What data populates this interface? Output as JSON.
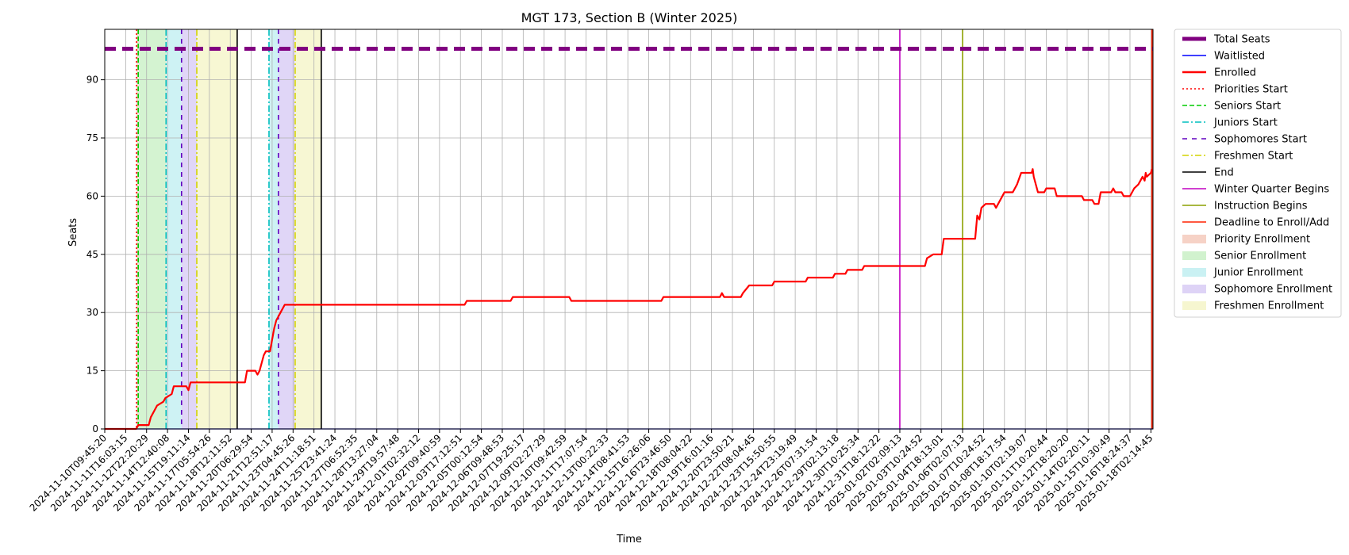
{
  "chart_data": {
    "type": "line",
    "title": "MGT 173, Section B (Winter 2025)",
    "xlabel": "Time",
    "ylabel": "Seats",
    "ylim": [
      0,
      103
    ],
    "yticks": [
      0,
      15,
      30,
      45,
      60,
      75,
      90
    ],
    "grid": true,
    "legend_position": "outside-right",
    "x_tick_labels": [
      "2024-11-10T09:45:20",
      "2024-11-11T16:03:15",
      "2024-11-12T22:20:29",
      "2024-11-14T12:40:08",
      "2024-11-15T19:11:14",
      "2024-11-17T05:54:26",
      "2024-11-18T12:11:52",
      "2024-11-20T06:29:54",
      "2024-11-21T12:51:17",
      "2024-11-23T04:45:26",
      "2024-11-24T11:18:51",
      "2024-11-25T23:41:24",
      "2024-11-27T06:52:35",
      "2024-11-28T13:27:04",
      "2024-11-29T19:57:48",
      "2024-12-01T02:32:12",
      "2024-12-02T09:40:59",
      "2024-12-03T17:12:51",
      "2024-12-05T00:12:54",
      "2024-12-06T09:48:53",
      "2024-12-07T19:25:17",
      "2024-12-09T02:27:29",
      "2024-12-10T09:42:59",
      "2024-12-11T17:07:54",
      "2024-12-13T00:22:33",
      "2024-12-14T08:41:53",
      "2024-12-15T16:26:06",
      "2024-12-16T23:46:50",
      "2024-12-18T08:04:22",
      "2024-12-19T16:01:16",
      "2024-12-20T23:50:21",
      "2024-12-22T08:04:45",
      "2024-12-23T15:50:55",
      "2024-12-24T23:19:49",
      "2024-12-26T07:31:54",
      "2024-12-29T02:13:18",
      "2024-12-30T10:25:34",
      "2024-12-31T18:12:22",
      "2025-01-02T02:09:13",
      "2025-01-03T10:24:52",
      "2025-01-04T18:13:01",
      "2025-01-06T02:07:13",
      "2025-01-07T10:24:52",
      "2025-01-08T18:17:54",
      "2025-01-10T02:19:07",
      "2025-01-11T10:20:44",
      "2025-01-12T18:20:20",
      "2025-01-14T02:20:11",
      "2025-01-15T10:30:49",
      "2025-01-16T18:24:37",
      "2025-01-18T02:14:45"
    ],
    "x_range": [
      0,
      50.1
    ],
    "series": [
      {
        "name": "Total Seats",
        "color": "#800080",
        "style": "dashed-thick",
        "points": [
          [
            0,
            98
          ],
          [
            50.1,
            98
          ]
        ]
      },
      {
        "name": "Waitlisted",
        "color": "#0000ff",
        "style": "solid-thin",
        "points": [
          [
            0,
            0
          ],
          [
            50.1,
            0
          ]
        ]
      },
      {
        "name": "Enrolled",
        "color": "#ff0000",
        "style": "solid",
        "points": [
          [
            0,
            0
          ],
          [
            1.5,
            0
          ],
          [
            1.6,
            1
          ],
          [
            2.1,
            1
          ],
          [
            2.2,
            3
          ],
          [
            2.4,
            5
          ],
          [
            2.5,
            6
          ],
          [
            2.8,
            7
          ],
          [
            2.9,
            8
          ],
          [
            3.2,
            9
          ],
          [
            3.3,
            11
          ],
          [
            3.9,
            11
          ],
          [
            4.0,
            10
          ],
          [
            4.1,
            12
          ],
          [
            6.7,
            12
          ],
          [
            6.8,
            15
          ],
          [
            7.2,
            15
          ],
          [
            7.3,
            14
          ],
          [
            7.4,
            15
          ],
          [
            7.6,
            19
          ],
          [
            7.7,
            20
          ],
          [
            7.9,
            20
          ],
          [
            8.0,
            23
          ],
          [
            8.1,
            26
          ],
          [
            8.2,
            28
          ],
          [
            8.4,
            30
          ],
          [
            8.6,
            32
          ],
          [
            17.2,
            32
          ],
          [
            17.3,
            33
          ],
          [
            19.4,
            33
          ],
          [
            19.5,
            34
          ],
          [
            22.2,
            34
          ],
          [
            22.3,
            33
          ],
          [
            26.6,
            33
          ],
          [
            26.7,
            34
          ],
          [
            29.4,
            34
          ],
          [
            29.5,
            35
          ],
          [
            29.6,
            34
          ],
          [
            30.4,
            34
          ],
          [
            30.5,
            35
          ],
          [
            30.8,
            37
          ],
          [
            31.9,
            37
          ],
          [
            32.0,
            38
          ],
          [
            33.5,
            38
          ],
          [
            33.6,
            39
          ],
          [
            34.8,
            39
          ],
          [
            34.9,
            40
          ],
          [
            35.4,
            40
          ],
          [
            35.5,
            41
          ],
          [
            36.2,
            41
          ],
          [
            36.3,
            42
          ],
          [
            39.2,
            42
          ],
          [
            39.3,
            44
          ],
          [
            39.6,
            45
          ],
          [
            40.0,
            45
          ],
          [
            40.1,
            49
          ],
          [
            41.6,
            49
          ],
          [
            41.7,
            55
          ],
          [
            41.8,
            54
          ],
          [
            41.9,
            57
          ],
          [
            42.1,
            58
          ],
          [
            42.5,
            58
          ],
          [
            42.6,
            57
          ],
          [
            42.8,
            59
          ],
          [
            43.0,
            61
          ],
          [
            43.4,
            61
          ],
          [
            43.6,
            63
          ],
          [
            43.8,
            66
          ],
          [
            44.3,
            66
          ],
          [
            44.35,
            67
          ],
          [
            44.4,
            65
          ],
          [
            44.6,
            61
          ],
          [
            44.9,
            61
          ],
          [
            45.0,
            62
          ],
          [
            45.4,
            62
          ],
          [
            45.5,
            60
          ],
          [
            46.7,
            60
          ],
          [
            46.8,
            59
          ],
          [
            47.2,
            59
          ],
          [
            47.3,
            58
          ],
          [
            47.5,
            58
          ],
          [
            47.6,
            61
          ],
          [
            48.1,
            61
          ],
          [
            48.2,
            62
          ],
          [
            48.3,
            61
          ],
          [
            48.6,
            61
          ],
          [
            48.7,
            60
          ],
          [
            49.0,
            60
          ],
          [
            49.2,
            62
          ],
          [
            49.4,
            63
          ],
          [
            49.5,
            64
          ],
          [
            49.6,
            65
          ],
          [
            49.7,
            64
          ],
          [
            49.75,
            66
          ],
          [
            49.8,
            65
          ],
          [
            50.0,
            66
          ],
          [
            50.05,
            67
          ]
        ]
      }
    ],
    "vlines": [
      {
        "name": "Priorities Start",
        "x": 1.52,
        "color": "#ff0000",
        "style": "dotted"
      },
      {
        "name": "Seniors Start",
        "x": 1.6,
        "color": "#00cc00",
        "style": "dashed"
      },
      {
        "name": "Juniors Start",
        "x": 2.93,
        "color": "#00bfbf",
        "style": "dashdot"
      },
      {
        "name": "Sophomores Start",
        "x": 3.67,
        "color": "#6000c0",
        "style": "loosedash"
      },
      {
        "name": "Freshmen Start",
        "x": 4.4,
        "color": "#d4d400",
        "style": "dashdot"
      },
      {
        "name": "End",
        "x": 6.33,
        "color": "#000000",
        "style": "solid"
      },
      {
        "name": "Juniors Start",
        "x": 7.85,
        "color": "#00bfbf",
        "style": "dashdot"
      },
      {
        "name": "Sophomores Start",
        "x": 8.3,
        "color": "#6000c0",
        "style": "loosedash"
      },
      {
        "name": "Freshmen Start",
        "x": 9.1,
        "color": "#d4d400",
        "style": "dashdot"
      },
      {
        "name": "End",
        "x": 10.35,
        "color": "#000000",
        "style": "solid"
      },
      {
        "name": "Winter Quarter Begins",
        "x": 38.0,
        "color": "#c000c0",
        "style": "solid"
      },
      {
        "name": "Instruction Begins",
        "x": 41.0,
        "color": "#8ca000",
        "style": "solid"
      },
      {
        "name": "Deadline to Enroll/Add",
        "x": 50.05,
        "color": "#ff2000",
        "style": "solid"
      }
    ],
    "spans": [
      {
        "name": "Priority Enrollment",
        "x0": 1.52,
        "x1": 1.6,
        "color": "#f4c7b8"
      },
      {
        "name": "Senior Enrollment",
        "x0": 1.6,
        "x1": 2.93,
        "color": "#c6efc2"
      },
      {
        "name": "Junior Enrollment",
        "x0": 2.93,
        "x1": 3.67,
        "color": "#bdeef0"
      },
      {
        "name": "Sophomore Enrollment",
        "x0": 3.67,
        "x1": 4.4,
        "color": "#d6c8f4"
      },
      {
        "name": "Freshmen Enrollment",
        "x0": 4.4,
        "x1": 6.33,
        "color": "#f4f4c4"
      },
      {
        "name": "Junior Enrollment",
        "x0": 7.85,
        "x1": 8.3,
        "color": "#bdeef0"
      },
      {
        "name": "Sophomore Enrollment",
        "x0": 8.3,
        "x1": 9.1,
        "color": "#d6c8f4"
      },
      {
        "name": "Freshmen Enrollment",
        "x0": 9.1,
        "x1": 10.35,
        "color": "#f4f4c4"
      }
    ],
    "legend": [
      {
        "label": "Total Seats",
        "kind": "line",
        "color": "#800080",
        "style": "thick"
      },
      {
        "label": "Waitlisted",
        "kind": "line",
        "color": "#0000ff",
        "style": "solid"
      },
      {
        "label": "Enrolled",
        "kind": "line",
        "color": "#ff0000",
        "style": "bold"
      },
      {
        "label": "Priorities Start",
        "kind": "line",
        "color": "#ff0000",
        "style": "dotted"
      },
      {
        "label": "Seniors Start",
        "kind": "line",
        "color": "#00cc00",
        "style": "dashed"
      },
      {
        "label": "Juniors Start",
        "kind": "line",
        "color": "#00bfbf",
        "style": "dashdot"
      },
      {
        "label": "Sophomores Start",
        "kind": "line",
        "color": "#6000c0",
        "style": "loosedash"
      },
      {
        "label": "Freshmen Start",
        "kind": "line",
        "color": "#d4d400",
        "style": "dashdot"
      },
      {
        "label": "End",
        "kind": "line",
        "color": "#000000",
        "style": "solid"
      },
      {
        "label": "Winter Quarter Begins",
        "kind": "line",
        "color": "#c000c0",
        "style": "solid"
      },
      {
        "label": "Instruction Begins",
        "kind": "line",
        "color": "#8ca000",
        "style": "solid"
      },
      {
        "label": "Deadline to Enroll/Add",
        "kind": "line",
        "color": "#ff2000",
        "style": "solid"
      },
      {
        "label": "Priority Enrollment",
        "kind": "patch",
        "color": "#f4c7b8"
      },
      {
        "label": "Senior Enrollment",
        "kind": "patch",
        "color": "#c6efc2"
      },
      {
        "label": "Junior Enrollment",
        "kind": "patch",
        "color": "#bdeef0"
      },
      {
        "label": "Sophomore Enrollment",
        "kind": "patch",
        "color": "#d6c8f4"
      },
      {
        "label": "Freshmen Enrollment",
        "kind": "patch",
        "color": "#f4f4c4"
      }
    ]
  }
}
